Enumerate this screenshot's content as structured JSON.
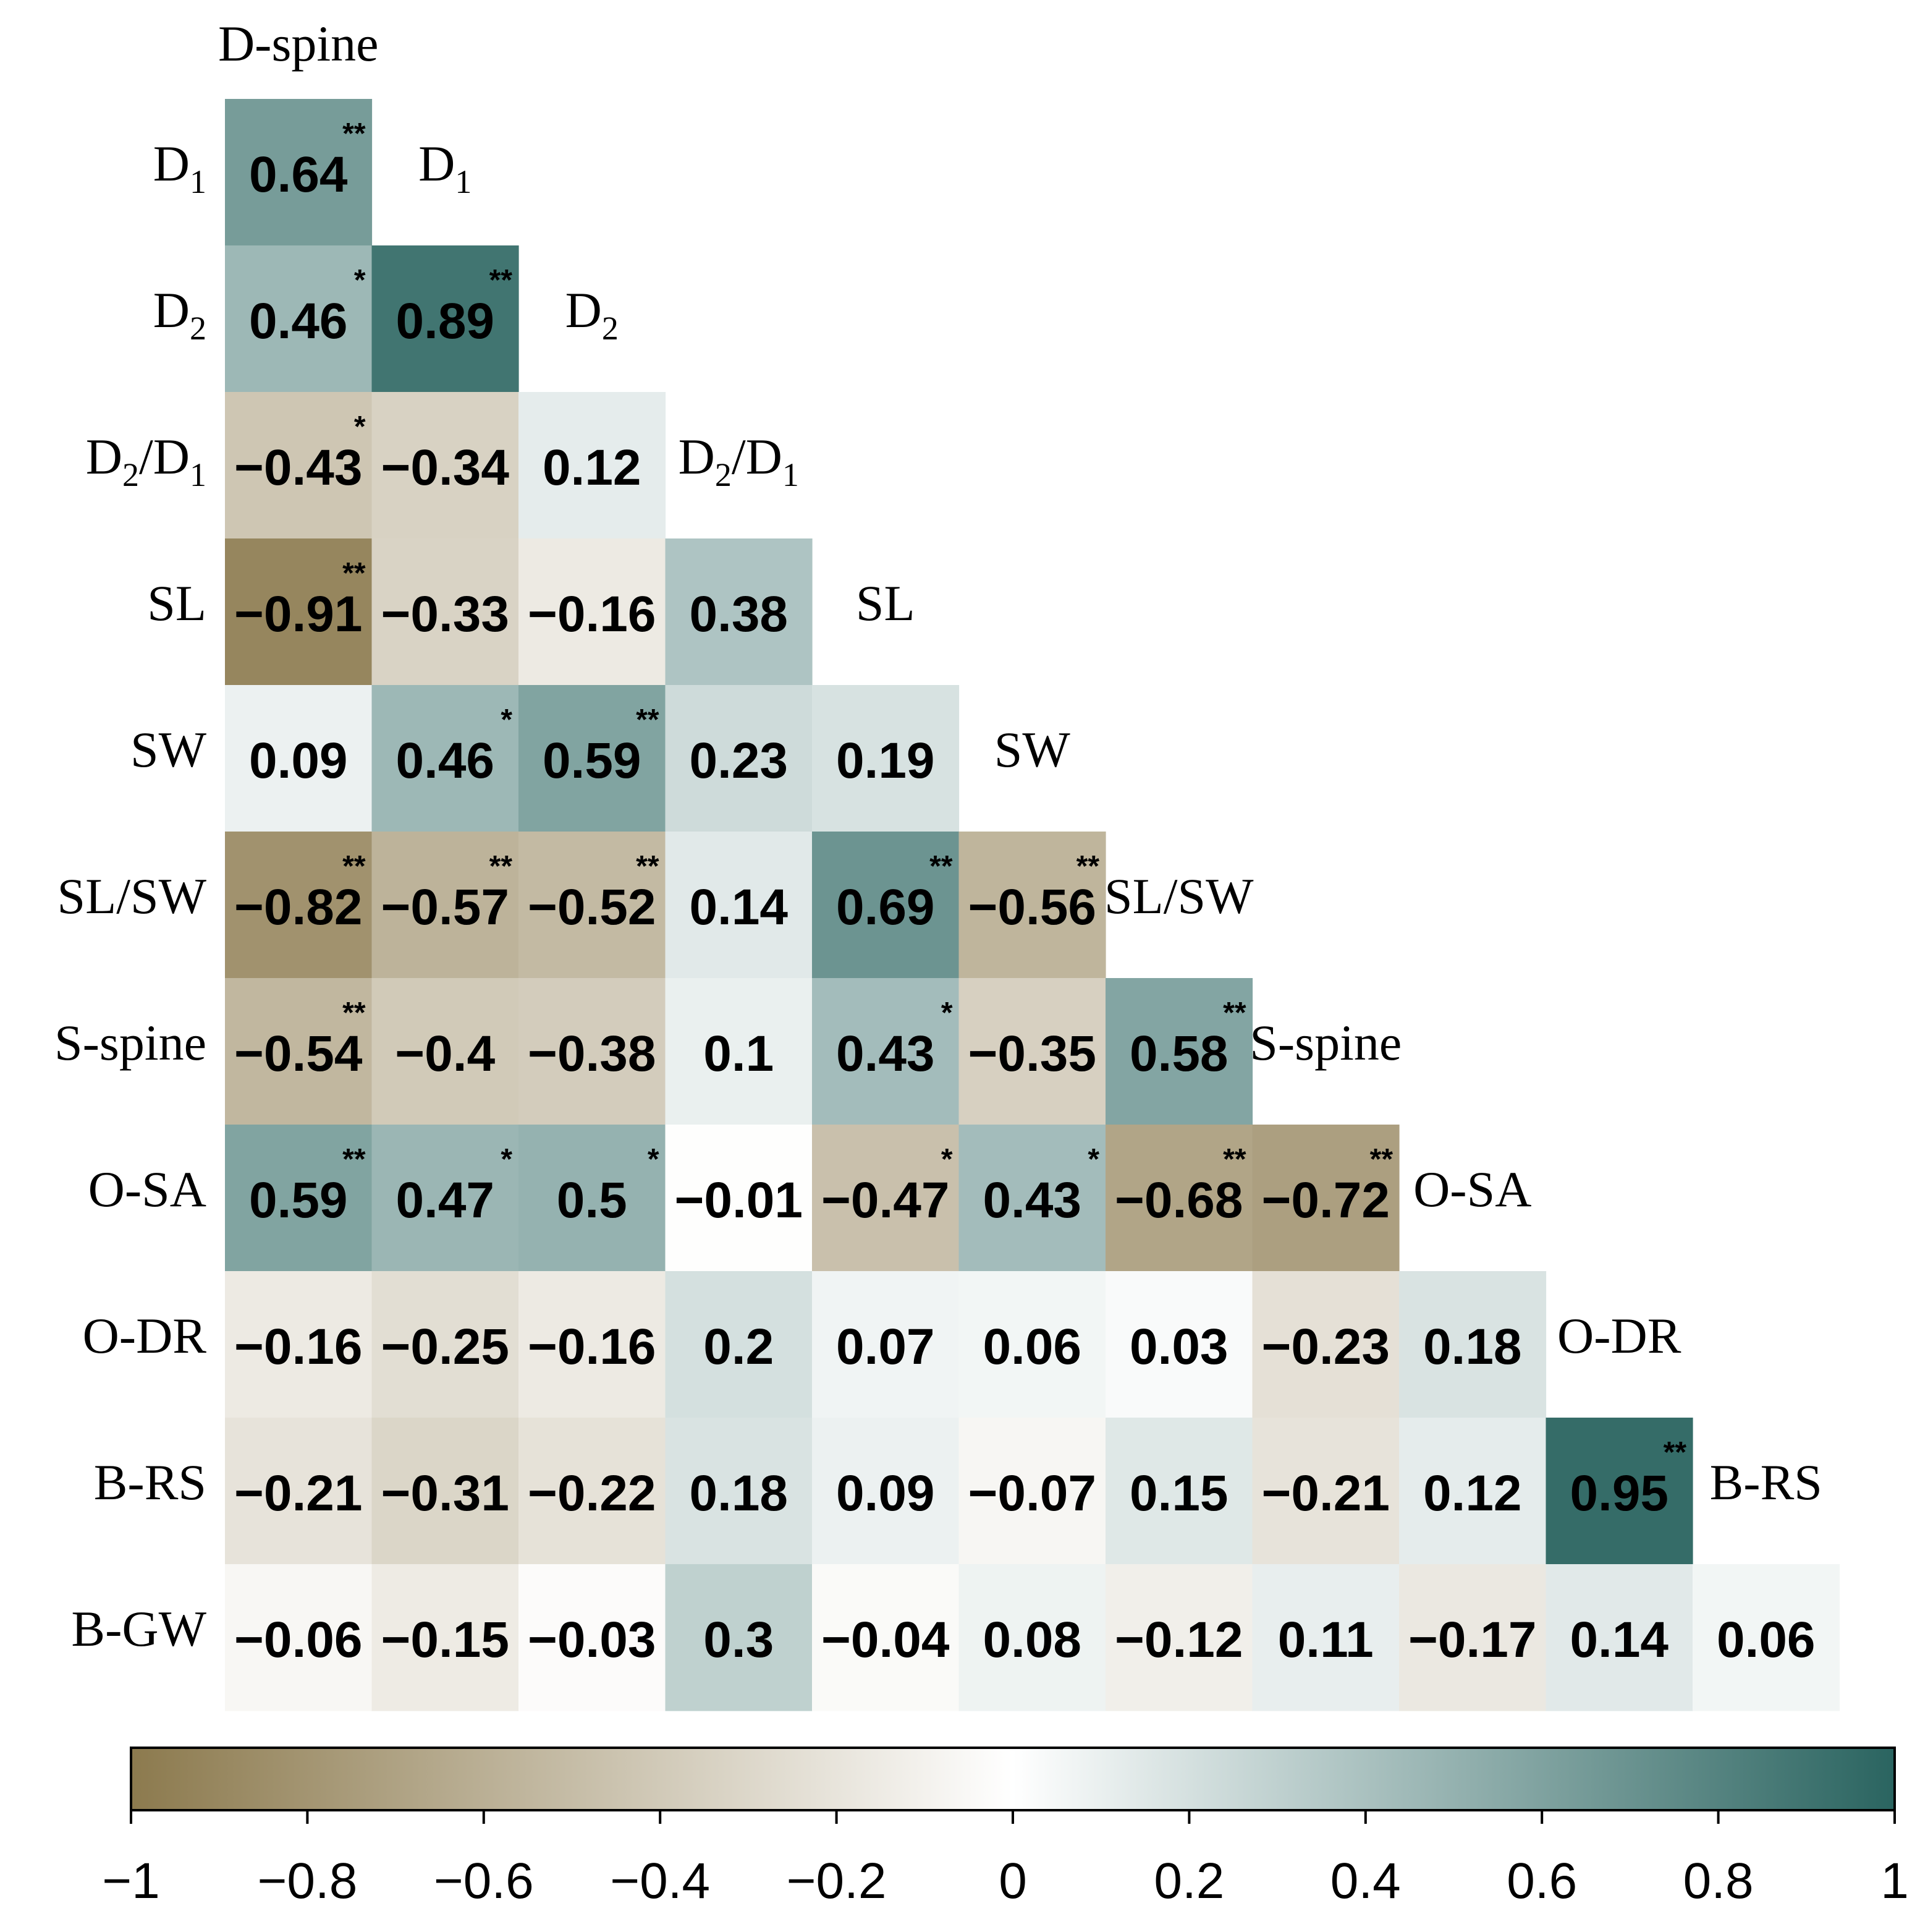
{
  "chart_data": {
    "type": "heatmap",
    "title": "",
    "variables": [
      {
        "base": "D-spine",
        "sub": ""
      },
      {
        "base": "D",
        "sub": "1"
      },
      {
        "base": "D",
        "sub": "2"
      },
      {
        "base": "D",
        "sub": "2",
        "mid": "/D",
        "sub2": "1"
      },
      {
        "base": "SL",
        "sub": ""
      },
      {
        "base": "SW",
        "sub": ""
      },
      {
        "base": "SL/SW",
        "sub": ""
      },
      {
        "base": "S-spine",
        "sub": ""
      },
      {
        "base": "O-SA",
        "sub": ""
      },
      {
        "base": "O-DR",
        "sub": ""
      },
      {
        "base": "B-RS",
        "sub": ""
      },
      {
        "base": "B-GW",
        "sub": ""
      }
    ],
    "rows": [
      {
        "values": [
          0.64
        ],
        "labels": [
          "0.64"
        ],
        "sig": [
          "**"
        ]
      },
      {
        "values": [
          0.46,
          0.89
        ],
        "labels": [
          "0.46",
          "0.89"
        ],
        "sig": [
          "*",
          "**"
        ]
      },
      {
        "values": [
          -0.43,
          -0.34,
          0.12
        ],
        "labels": [
          "−0.43",
          "−0.34",
          "0.12"
        ],
        "sig": [
          "*",
          "",
          ""
        ]
      },
      {
        "values": [
          -0.91,
          -0.33,
          -0.16,
          0.38
        ],
        "labels": [
          "−0.91",
          "−0.33",
          "−0.16",
          "0.38"
        ],
        "sig": [
          "**",
          "",
          "",
          ""
        ]
      },
      {
        "values": [
          0.09,
          0.46,
          0.59,
          0.23,
          0.19
        ],
        "labels": [
          "0.09",
          "0.46",
          "0.59",
          "0.23",
          "0.19"
        ],
        "sig": [
          "",
          "*",
          "**",
          "",
          ""
        ]
      },
      {
        "values": [
          -0.82,
          -0.57,
          -0.52,
          0.14,
          0.69,
          -0.56
        ],
        "labels": [
          "−0.82",
          "−0.57",
          "−0.52",
          "0.14",
          "0.69",
          "−0.56"
        ],
        "sig": [
          "**",
          "**",
          "**",
          "",
          "**",
          "**"
        ]
      },
      {
        "values": [
          -0.54,
          -0.4,
          -0.38,
          0.1,
          0.43,
          -0.35,
          0.58
        ],
        "labels": [
          "−0.54",
          "−0.4",
          "−0.38",
          "0.1",
          "0.43",
          "−0.35",
          "0.58"
        ],
        "sig": [
          "**",
          "",
          "",
          "",
          "*",
          "",
          "**"
        ]
      },
      {
        "values": [
          0.59,
          0.47,
          0.5,
          -0.01,
          -0.47,
          0.43,
          -0.68,
          -0.72
        ],
        "labels": [
          "0.59",
          "0.47",
          "0.5",
          "−0.01",
          "−0.47",
          "0.43",
          "−0.68",
          "−0.72"
        ],
        "sig": [
          "**",
          "*",
          "*",
          "",
          "*",
          "*",
          "**",
          "**"
        ]
      },
      {
        "values": [
          -0.16,
          -0.25,
          -0.16,
          0.2,
          0.07,
          0.06,
          0.03,
          -0.23,
          0.18
        ],
        "labels": [
          "−0.16",
          "−0.25",
          "−0.16",
          "0.2",
          "0.07",
          "0.06",
          "0.03",
          "−0.23",
          "0.18"
        ],
        "sig": [
          "",
          "",
          "",
          "",
          "",
          "",
          "",
          "",
          ""
        ]
      },
      {
        "values": [
          -0.21,
          -0.31,
          -0.22,
          0.18,
          0.09,
          -0.07,
          0.15,
          -0.21,
          0.12,
          0.95
        ],
        "labels": [
          "−0.21",
          "−0.31",
          "−0.22",
          "0.18",
          "0.09",
          "−0.07",
          "0.15",
          "−0.21",
          "0.12",
          "0.95"
        ],
        "sig": [
          "",
          "",
          "",
          "",
          "",
          "",
          "",
          "",
          "",
          "**"
        ]
      },
      {
        "values": [
          -0.06,
          -0.15,
          -0.03,
          0.3,
          -0.04,
          0.08,
          -0.12,
          0.11,
          -0.17,
          0.14,
          0.06
        ],
        "labels": [
          "−0.06",
          "−0.15",
          "−0.03",
          "0.3",
          "−0.04",
          "0.08",
          "−0.12",
          "0.11",
          "−0.17",
          "0.14",
          "0.06"
        ],
        "sig": [
          "",
          "",
          "",
          "",
          "",
          "",
          "",
          "",
          "",
          "",
          ""
        ]
      }
    ],
    "colorbar": {
      "range": [
        -1,
        1
      ],
      "ticks": [
        -1,
        -0.8,
        -0.6,
        -0.4,
        -0.2,
        0,
        0.2,
        0.4,
        0.6,
        0.8,
        1
      ],
      "tick_labels": [
        "−1",
        "−0.8",
        "−0.6",
        "−0.4",
        "−0.2",
        "0",
        "0.2",
        "0.4",
        "0.6",
        "0.8",
        "1"
      ],
      "negative_color": "#8c7a4e",
      "neutral_color": "#ffffff",
      "positive_color": "#2a6460"
    }
  }
}
